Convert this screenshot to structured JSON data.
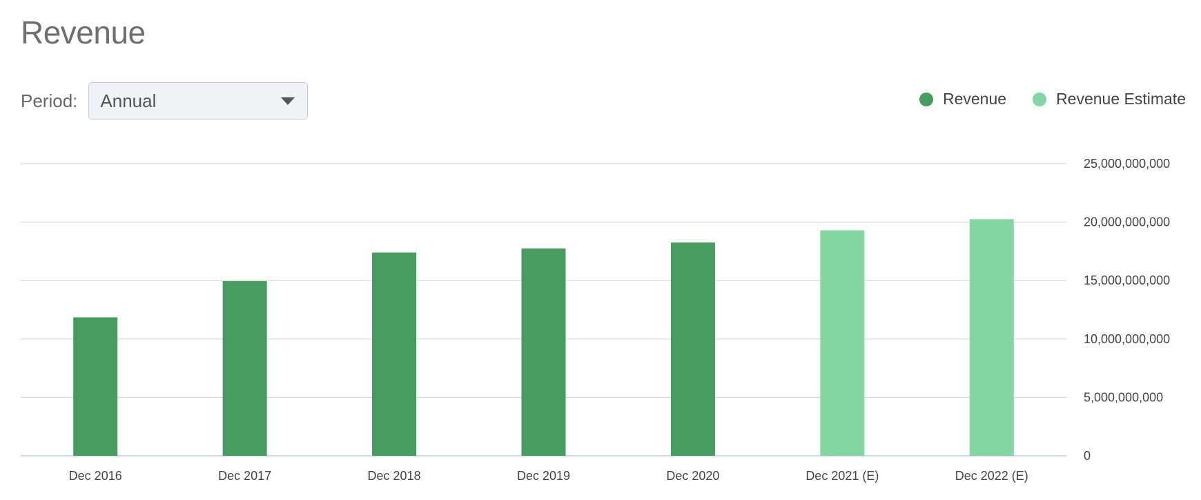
{
  "title": "Revenue",
  "period": {
    "label": "Period:",
    "selected": "Annual",
    "icon": "caret-down-icon"
  },
  "legend": [
    {
      "name": "Revenue",
      "color": "#469b5e"
    },
    {
      "name": "Revenue Estimate",
      "color": "#84d6a3"
    }
  ],
  "chart_data": {
    "type": "bar",
    "categories": [
      "Dec 2016",
      "Dec 2017",
      "Dec 2018",
      "Dec 2019",
      "Dec 2020",
      "Dec 2021 (E)",
      "Dec 2022 (E)"
    ],
    "series": [
      {
        "name": "Revenue",
        "color": "#469b5e",
        "values": [
          11850000000,
          14950000000,
          17400000000,
          17750000000,
          18250000000,
          null,
          null
        ]
      },
      {
        "name": "Revenue Estimate",
        "color": "#84d6a3",
        "values": [
          null,
          null,
          null,
          null,
          null,
          19300000000,
          20250000000
        ]
      }
    ],
    "y_ticks": [
      "0",
      "5,000,000,000",
      "10,000,000,000",
      "15,000,000,000",
      "20,000,000,000",
      "25,000,000,000"
    ],
    "ylim": [
      0,
      25000000000
    ],
    "grid": true,
    "y_axis_side": "right",
    "legend_position": "top-right"
  }
}
